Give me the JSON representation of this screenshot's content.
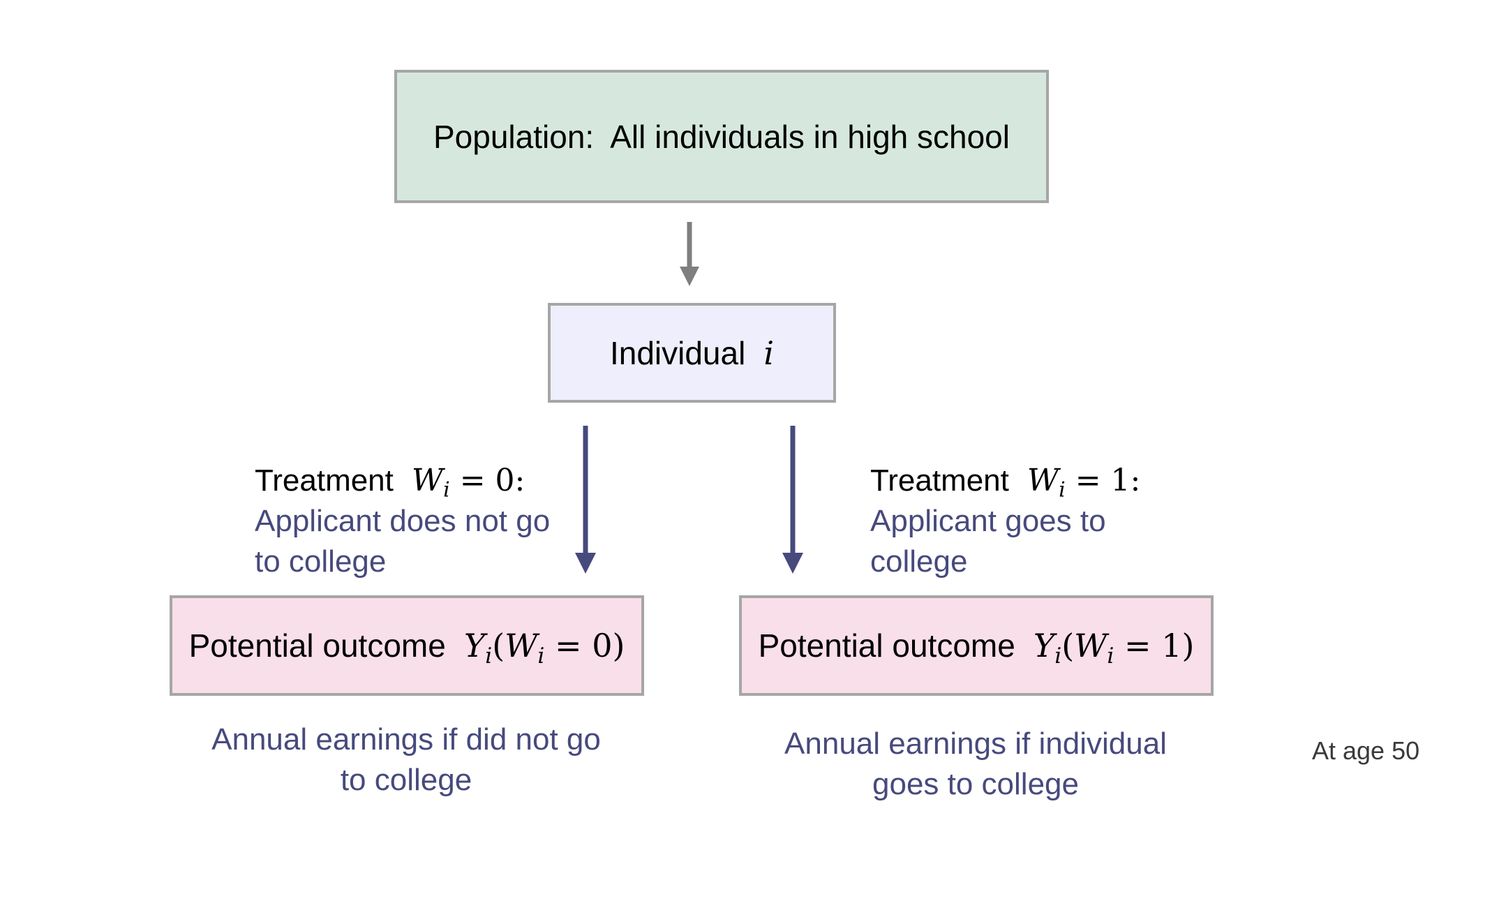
{
  "population": {
    "label": "Population:  All individuals in high school"
  },
  "individual": {
    "label": "Individual",
    "symbol": "i"
  },
  "treatments": [
    {
      "label": "Treatment",
      "math_var": "W",
      "math_sub": "i",
      "math_rest": " = 0:",
      "desc_line1": "Applicant does not go",
      "desc_line2": "to college"
    },
    {
      "label": "Treatment",
      "math_var": "W",
      "math_sub": "i",
      "math_rest": " = 1:",
      "desc_line1": "Applicant goes to",
      "desc_line2": "college"
    }
  ],
  "outcomes": [
    {
      "label": "Potential outcome",
      "math_y": "Y",
      "math_sub": "i",
      "math_open": "(",
      "math_w": "W",
      "math_w_sub": "i",
      "math_rest": " = 0)",
      "caption_line1": "Annual earnings if did not go",
      "caption_line2": "to college"
    },
    {
      "label": "Potential outcome",
      "math_y": "Y",
      "math_sub": "i",
      "math_open": "(",
      "math_w": "W",
      "math_w_sub": "i",
      "math_rest": " = 1)",
      "caption_line1": "Annual earnings if individual",
      "caption_line2": "goes to college"
    }
  ],
  "note": "At age 50",
  "colors": {
    "population_fill": "#d6e8de",
    "individual_fill": "#eeeefc",
    "outcome_fill": "#f9dfe9",
    "box_border": "#a6a6a6",
    "accent_text": "#474a7d",
    "arrow_gray": "#7f7f7f",
    "arrow_navy": "#474a7d"
  }
}
